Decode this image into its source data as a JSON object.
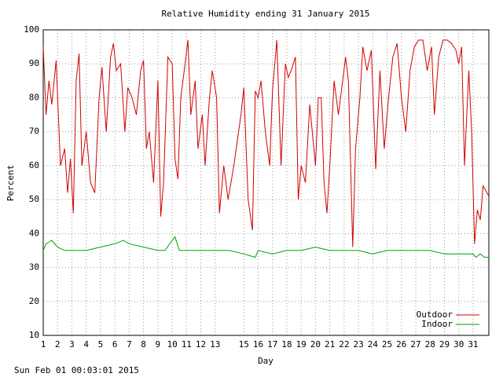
{
  "chart_data": {
    "type": "line",
    "title": "Relative Humidity ending 31 January 2015",
    "xlabel": "Day",
    "ylabel": "Percent",
    "footnote": "Sun Feb 01 00:03:01 2015",
    "xlim": [
      1,
      32.1
    ],
    "ylim": [
      10,
      100
    ],
    "xticks": [
      1,
      2,
      3,
      4,
      5,
      6,
      7,
      8,
      9,
      10,
      11,
      12,
      13,
      15,
      16,
      17,
      18,
      19,
      20,
      21,
      22,
      23,
      24,
      25,
      26,
      27,
      28,
      29,
      30,
      31
    ],
    "yticks": [
      10,
      20,
      30,
      40,
      50,
      60,
      70,
      80,
      90,
      100
    ],
    "grid": true,
    "legend": "lower right",
    "series": [
      {
        "name": "Outdoor",
        "color": "#d00000",
        "x": [
          1.0,
          1.2,
          1.4,
          1.6,
          1.9,
          2.2,
          2.5,
          2.7,
          2.9,
          3.1,
          3.3,
          3.5,
          3.7,
          4.0,
          4.3,
          4.6,
          4.9,
          5.1,
          5.4,
          5.7,
          5.9,
          6.1,
          6.4,
          6.7,
          6.9,
          7.2,
          7.5,
          7.8,
          8.0,
          8.2,
          8.4,
          8.7,
          9.0,
          9.2,
          9.4,
          9.7,
          10.0,
          10.2,
          10.4,
          10.6,
          10.9,
          11.1,
          11.3,
          11.6,
          11.8,
          12.1,
          12.3,
          12.6,
          12.8,
          13.1,
          13.3,
          13.6,
          13.9,
          14.3,
          14.8,
          15.0,
          15.3,
          15.6,
          15.8,
          16.0,
          16.2,
          16.5,
          16.8,
          17.0,
          17.3,
          17.6,
          17.9,
          18.1,
          18.3,
          18.6,
          18.8,
          19.0,
          19.3,
          19.6,
          20.0,
          20.2,
          20.4,
          20.6,
          20.8,
          21.0,
          21.3,
          21.6,
          21.9,
          22.1,
          22.3,
          22.6,
          22.8,
          23.1,
          23.3,
          23.6,
          23.9,
          24.2,
          24.5,
          24.8,
          25.1,
          25.4,
          25.7,
          26.0,
          26.3,
          26.6,
          26.9,
          27.2,
          27.5,
          27.8,
          28.1,
          28.3,
          28.6,
          28.9,
          29.2,
          29.5,
          29.8,
          30.0,
          30.2,
          30.4,
          30.7,
          30.9,
          31.1,
          31.3,
          31.5,
          31.7,
          32.1
        ],
        "values": [
          95,
          75,
          85,
          78,
          91,
          60,
          65,
          52,
          62,
          46,
          85,
          93,
          60,
          70,
          55,
          52,
          80,
          89,
          70,
          92,
          96,
          88,
          90,
          70,
          83,
          80,
          75,
          88,
          91,
          65,
          70,
          55,
          85,
          45,
          55,
          92,
          90,
          62,
          56,
          80,
          90,
          97,
          75,
          85,
          65,
          75,
          60,
          80,
          88,
          80,
          46,
          60,
          50,
          60,
          75,
          83,
          50,
          41,
          82,
          80,
          85,
          70,
          60,
          82,
          97,
          60,
          90,
          86,
          88,
          92,
          50,
          60,
          55,
          78,
          60,
          80,
          80,
          55,
          46,
          60,
          85,
          75,
          85,
          92,
          85,
          36,
          65,
          80,
          95,
          88,
          94,
          59,
          88,
          65,
          80,
          92,
          96,
          80,
          70,
          88,
          95,
          97,
          97,
          88,
          95,
          75,
          92,
          97,
          97,
          96,
          94,
          90,
          95,
          60,
          88,
          70,
          37,
          47,
          44,
          54,
          51
        ]
      },
      {
        "name": "Indoor",
        "color": "#00a000",
        "x": [
          1.0,
          1.2,
          1.6,
          2.0,
          2.5,
          3.0,
          4.0,
          5.0,
          6.0,
          6.6,
          7.0,
          8.0,
          9.0,
          9.5,
          10.0,
          10.2,
          10.5,
          11.0,
          12.0,
          13.0,
          14.0,
          15.0,
          15.8,
          16.0,
          17.0,
          18.0,
          19.0,
          20.0,
          21.0,
          22.0,
          23.0,
          24.0,
          25.0,
          26.0,
          27.0,
          28.0,
          29.0,
          30.0,
          31.0,
          31.2,
          31.5,
          31.8,
          32.1
        ],
        "values": [
          35,
          37,
          38,
          36,
          35,
          35,
          35,
          36,
          37,
          38,
          37,
          36,
          35,
          35,
          38,
          39,
          35,
          35,
          35,
          35,
          35,
          34,
          33,
          35,
          34,
          35,
          35,
          36,
          35,
          35,
          35,
          34,
          35,
          35,
          35,
          35,
          34,
          34,
          34,
          33,
          34,
          33,
          33
        ]
      }
    ]
  }
}
